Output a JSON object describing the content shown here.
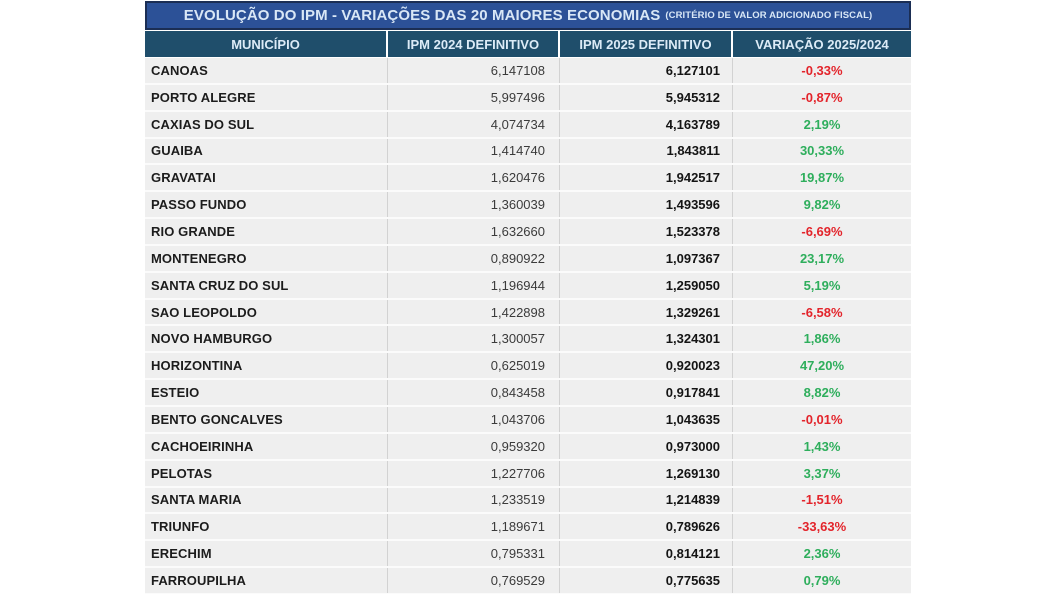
{
  "colors": {
    "title_bg": "#2c5197",
    "title_border": "#1b2e54",
    "title_text": "#d9e7f6",
    "header_bg": "#1f4e6b",
    "header_text": "#dcebf7",
    "row_bg": "#efefef",
    "positive": "#2eae5c",
    "negative": "#e3242b"
  },
  "chart_data": {
    "type": "table",
    "title": "EVOLUÇÃO DO IPM - VARIAÇÕES DAS 20 MAIORES ECONOMIAS",
    "subtitle": "(CRITÉRIO DE VALOR ADICIONADO FISCAL)",
    "columns": [
      "MUNICÍPIO",
      "IPM 2024 DEFINITIVO",
      "IPM 2025 DEFINITIVO",
      "VARIAÇÃO 2025/2024"
    ],
    "rows": [
      {
        "municipio": "CANOAS",
        "ipm_2024": "6,147108",
        "ipm_2025": "6,127101",
        "variacao": "-0,33%",
        "trend": "negative"
      },
      {
        "municipio": "PORTO ALEGRE",
        "ipm_2024": "5,997496",
        "ipm_2025": "5,945312",
        "variacao": "-0,87%",
        "trend": "negative"
      },
      {
        "municipio": "CAXIAS DO SUL",
        "ipm_2024": "4,074734",
        "ipm_2025": "4,163789",
        "variacao": "2,19%",
        "trend": "positive"
      },
      {
        "municipio": "GUAIBA",
        "ipm_2024": "1,414740",
        "ipm_2025": "1,843811",
        "variacao": "30,33%",
        "trend": "positive"
      },
      {
        "municipio": "GRAVATAI",
        "ipm_2024": "1,620476",
        "ipm_2025": "1,942517",
        "variacao": "19,87%",
        "trend": "positive"
      },
      {
        "municipio": "PASSO FUNDO",
        "ipm_2024": "1,360039",
        "ipm_2025": "1,493596",
        "variacao": "9,82%",
        "trend": "positive"
      },
      {
        "municipio": "RIO GRANDE",
        "ipm_2024": "1,632660",
        "ipm_2025": "1,523378",
        "variacao": "-6,69%",
        "trend": "negative"
      },
      {
        "municipio": "MONTENEGRO",
        "ipm_2024": "0,890922",
        "ipm_2025": "1,097367",
        "variacao": "23,17%",
        "trend": "positive"
      },
      {
        "municipio": "SANTA CRUZ DO SUL",
        "ipm_2024": "1,196944",
        "ipm_2025": "1,259050",
        "variacao": "5,19%",
        "trend": "positive"
      },
      {
        "municipio": "SAO LEOPOLDO",
        "ipm_2024": "1,422898",
        "ipm_2025": "1,329261",
        "variacao": "-6,58%",
        "trend": "negative"
      },
      {
        "municipio": "NOVO HAMBURGO",
        "ipm_2024": "1,300057",
        "ipm_2025": "1,324301",
        "variacao": "1,86%",
        "trend": "positive"
      },
      {
        "municipio": "HORIZONTINA",
        "ipm_2024": "0,625019",
        "ipm_2025": "0,920023",
        "variacao": "47,20%",
        "trend": "positive"
      },
      {
        "municipio": "ESTEIO",
        "ipm_2024": "0,843458",
        "ipm_2025": "0,917841",
        "variacao": "8,82%",
        "trend": "positive"
      },
      {
        "municipio": "BENTO GONCALVES",
        "ipm_2024": "1,043706",
        "ipm_2025": "1,043635",
        "variacao": "-0,01%",
        "trend": "negative"
      },
      {
        "municipio": "CACHOEIRINHA",
        "ipm_2024": "0,959320",
        "ipm_2025": "0,973000",
        "variacao": "1,43%",
        "trend": "positive"
      },
      {
        "municipio": "PELOTAS",
        "ipm_2024": "1,227706",
        "ipm_2025": "1,269130",
        "variacao": "3,37%",
        "trend": "positive"
      },
      {
        "municipio": "SANTA MARIA",
        "ipm_2024": "1,233519",
        "ipm_2025": "1,214839",
        "variacao": "-1,51%",
        "trend": "negative"
      },
      {
        "municipio": "TRIUNFO",
        "ipm_2024": "1,189671",
        "ipm_2025": "0,789626",
        "variacao": "-33,63%",
        "trend": "negative"
      },
      {
        "municipio": "ERECHIM",
        "ipm_2024": "0,795331",
        "ipm_2025": "0,814121",
        "variacao": "2,36%",
        "trend": "positive"
      },
      {
        "municipio": "FARROUPILHA",
        "ipm_2024": "0,769529",
        "ipm_2025": "0,775635",
        "variacao": "0,79%",
        "trend": "positive"
      }
    ]
  }
}
